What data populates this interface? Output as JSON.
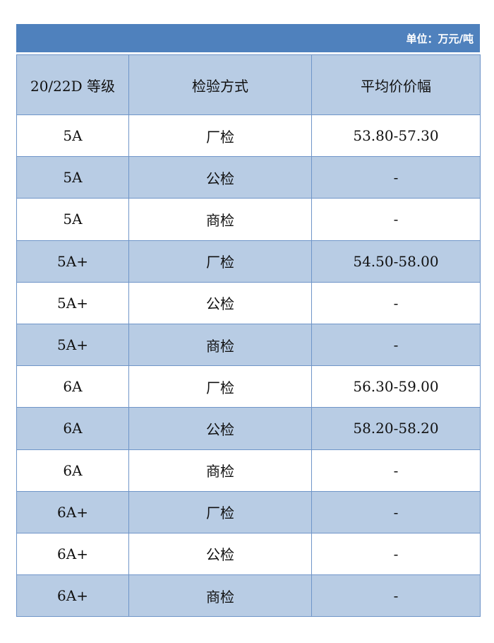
{
  "unit_label": "单位：万元/吨",
  "colors": {
    "title_bar": "#4f81bd",
    "header_bg": "#b8cce4",
    "alt_row_bg": "#b8cce4",
    "border": "#6f95c8"
  },
  "headers": [
    "20/22D 等级",
    "检验方式",
    "平均价价幅"
  ],
  "rows": [
    [
      "5A",
      "厂检",
      "53.80-57.30"
    ],
    [
      "5A",
      "公检",
      "-"
    ],
    [
      "5A",
      "商检",
      "-"
    ],
    [
      "5A+",
      "厂检",
      "54.50-58.00"
    ],
    [
      "5A+",
      "公检",
      "-"
    ],
    [
      "5A+",
      "商检",
      "-"
    ],
    [
      "6A",
      "厂检",
      "56.30-59.00"
    ],
    [
      "6A",
      "公检",
      "58.20-58.20"
    ],
    [
      "6A",
      "商检",
      "-"
    ],
    [
      "6A+",
      "厂检",
      "-"
    ],
    [
      "6A+",
      "公检",
      "-"
    ],
    [
      "6A+",
      "商检",
      "-"
    ]
  ]
}
